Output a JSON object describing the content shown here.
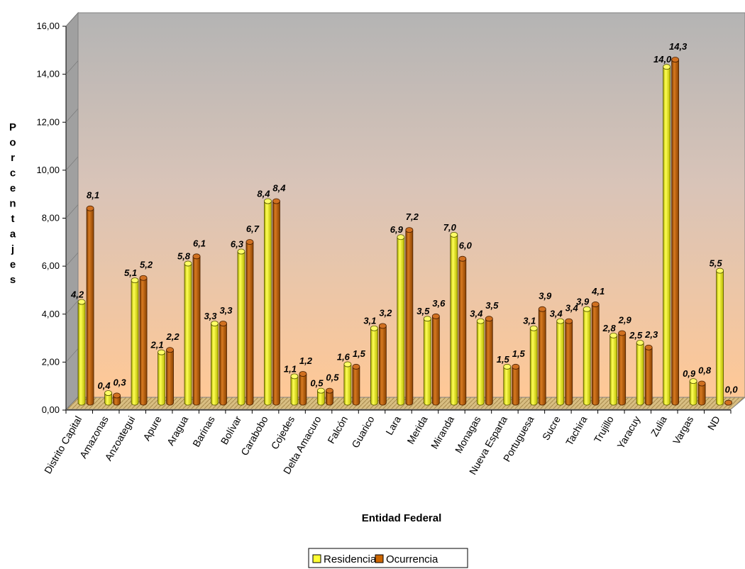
{
  "chart_data": {
    "type": "bar",
    "xlabel": "Entidad Federal",
    "ylabel": "Porcentajes",
    "ylim": [
      0,
      16
    ],
    "yticks": [
      "0,00",
      "2,00",
      "4,00",
      "6,00",
      "8,00",
      "10,00",
      "12,00",
      "14,00",
      "16,00"
    ],
    "legend_position": "bottom",
    "grid": false,
    "categories": [
      "Distrito Capital",
      "Amazonas",
      "Anzoategui",
      "Apure",
      "Aragua",
      "Barinas",
      "Bolívar",
      "Carabobo",
      "Cojedes",
      "Delta Amacuro",
      "Falcón",
      "Guarico",
      "Lara",
      "Merida",
      "Miranda",
      "Monagas",
      "Nueva Esparta",
      "Portuguesa",
      "Sucre",
      "Tachira",
      "Trujillo",
      "Yaracuy",
      "Zulia",
      "Vargas",
      "ND"
    ],
    "series": [
      {
        "name": "Residencia",
        "color": "#ffff33",
        "values": [
          4.2,
          0.4,
          5.1,
          2.1,
          5.8,
          3.3,
          6.3,
          8.4,
          1.1,
          0.5,
          1.6,
          3.1,
          6.9,
          3.5,
          7.0,
          3.4,
          1.5,
          3.1,
          3.4,
          3.9,
          2.8,
          2.5,
          14.0,
          0.9,
          5.5
        ],
        "labels": [
          "4,2",
          "0,4",
          "5,1",
          "2,1",
          "5,8",
          "3,3",
          "6,3",
          "8,4",
          "1,1",
          "0,5",
          "1,6",
          "3,1",
          "6,9",
          "3,5",
          "7,0",
          "3,4",
          "1,5",
          "3,1",
          "3,4",
          "3,9",
          "2,8",
          "2,5",
          "14,0",
          "0,9",
          "5,5"
        ]
      },
      {
        "name": "Ocurrencia",
        "color": "#cc6600",
        "values": [
          8.1,
          0.3,
          5.2,
          2.2,
          6.1,
          3.3,
          6.7,
          8.4,
          1.2,
          0.5,
          1.5,
          3.2,
          7.2,
          3.6,
          6.0,
          3.5,
          1.5,
          3.9,
          3.4,
          4.1,
          2.9,
          2.3,
          14.3,
          0.8,
          0.0
        ],
        "labels": [
          "8,1",
          "0,3",
          "5,2",
          "2,2",
          "6,1",
          "3,3",
          "6,7",
          "8,4",
          "1,2",
          "0,5",
          "1,5",
          "3,2",
          "7,2",
          "3,6",
          "6,0",
          "3,5",
          "1,5",
          "3,9",
          "3,4",
          "4,1",
          "2,9",
          "2,3",
          "14,3",
          "0,8",
          "0,0"
        ]
      }
    ]
  }
}
